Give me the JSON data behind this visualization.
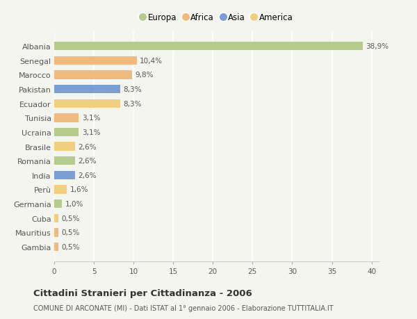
{
  "countries": [
    "Albania",
    "Senegal",
    "Marocco",
    "Pakistan",
    "Ecuador",
    "Tunisia",
    "Ucraina",
    "Brasile",
    "Romania",
    "India",
    "Perù",
    "Germania",
    "Cuba",
    "Mauritius",
    "Gambia"
  ],
  "values": [
    38.9,
    10.4,
    9.8,
    8.3,
    8.3,
    3.1,
    3.1,
    2.6,
    2.6,
    2.6,
    1.6,
    1.0,
    0.5,
    0.5,
    0.5
  ],
  "labels": [
    "38,9%",
    "10,4%",
    "9,8%",
    "8,3%",
    "8,3%",
    "3,1%",
    "3,1%",
    "2,6%",
    "2,6%",
    "2,6%",
    "1,6%",
    "1,0%",
    "0,5%",
    "0,5%",
    "0,5%"
  ],
  "continents": [
    "Europa",
    "Africa",
    "Africa",
    "Asia",
    "America",
    "Africa",
    "Europa",
    "America",
    "Europa",
    "Asia",
    "America",
    "Europa",
    "America",
    "Africa",
    "Africa"
  ],
  "colors": {
    "Europa": "#b5cc8e",
    "Africa": "#f0b97e",
    "Asia": "#7b9fd4",
    "America": "#f0d07e"
  },
  "legend_order": [
    "Europa",
    "Africa",
    "Asia",
    "America"
  ],
  "xlim": [
    0,
    41
  ],
  "xticks": [
    0,
    5,
    10,
    15,
    20,
    25,
    30,
    35,
    40
  ],
  "title": "Cittadini Stranieri per Cittadinanza - 2006",
  "subtitle": "COMUNE DI ARCONATE (MI) - Dati ISTAT al 1° gennaio 2006 - Elaborazione TUTTITALIA.IT",
  "bg_color": "#f5f5f0",
  "grid_color": "#ffffff",
  "bar_height": 0.6
}
